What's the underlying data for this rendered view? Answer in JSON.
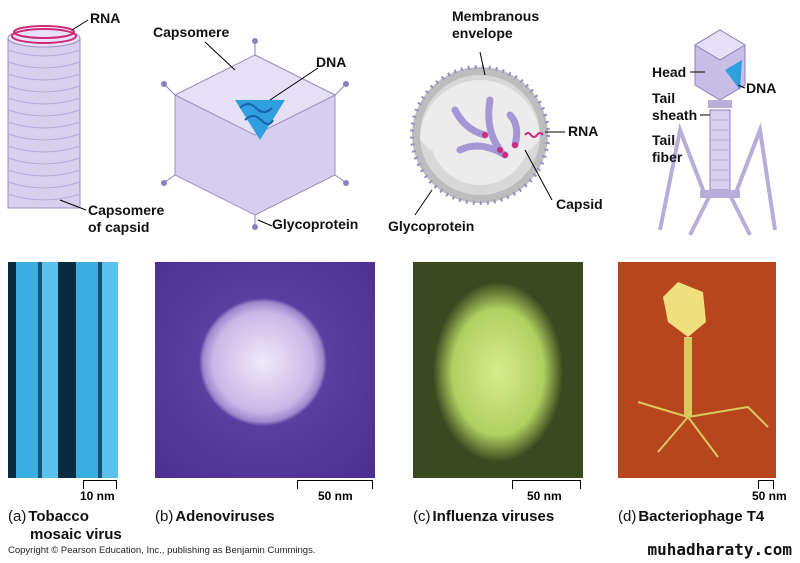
{
  "panels": [
    {
      "letter": "(a)",
      "name": "Tobacco mosaic virus",
      "name_lines": [
        "Tobacco",
        "mosaic virus"
      ],
      "labels": [
        "RNA",
        "Capsomere",
        "of capsid"
      ],
      "scale": "10 nm"
    },
    {
      "letter": "(b)",
      "name": "Adenoviruses",
      "labels": [
        "Capsomere",
        "DNA",
        "Glycoprotein"
      ],
      "scale": "50 nm"
    },
    {
      "letter": "(c)",
      "name": "Influenza viruses",
      "labels": [
        "Membranous",
        "envelope",
        "RNA",
        "Capsid",
        "Glycoprotein"
      ],
      "scale": "50 nm"
    },
    {
      "letter": "(d)",
      "name": "Bacteriophage T4",
      "labels": [
        "Head",
        "DNA",
        "Tail",
        "sheath",
        "Tail",
        "fiber"
      ],
      "scale": "50 nm"
    }
  ],
  "copyright": "Copyright © Pearson Education, Inc., publishing as Benjamin Cummings.",
  "watermark": "muhadharaty.com",
  "colors": {
    "capsid": "#c9bfe6",
    "rna": "#d0287a",
    "dna": "#2f9fe0",
    "tmv_photo": "#3aaee0",
    "adeno_bg": "#5a3ea0",
    "flu_photo": "#c8e07a",
    "phage_bg": "#b8461c"
  }
}
